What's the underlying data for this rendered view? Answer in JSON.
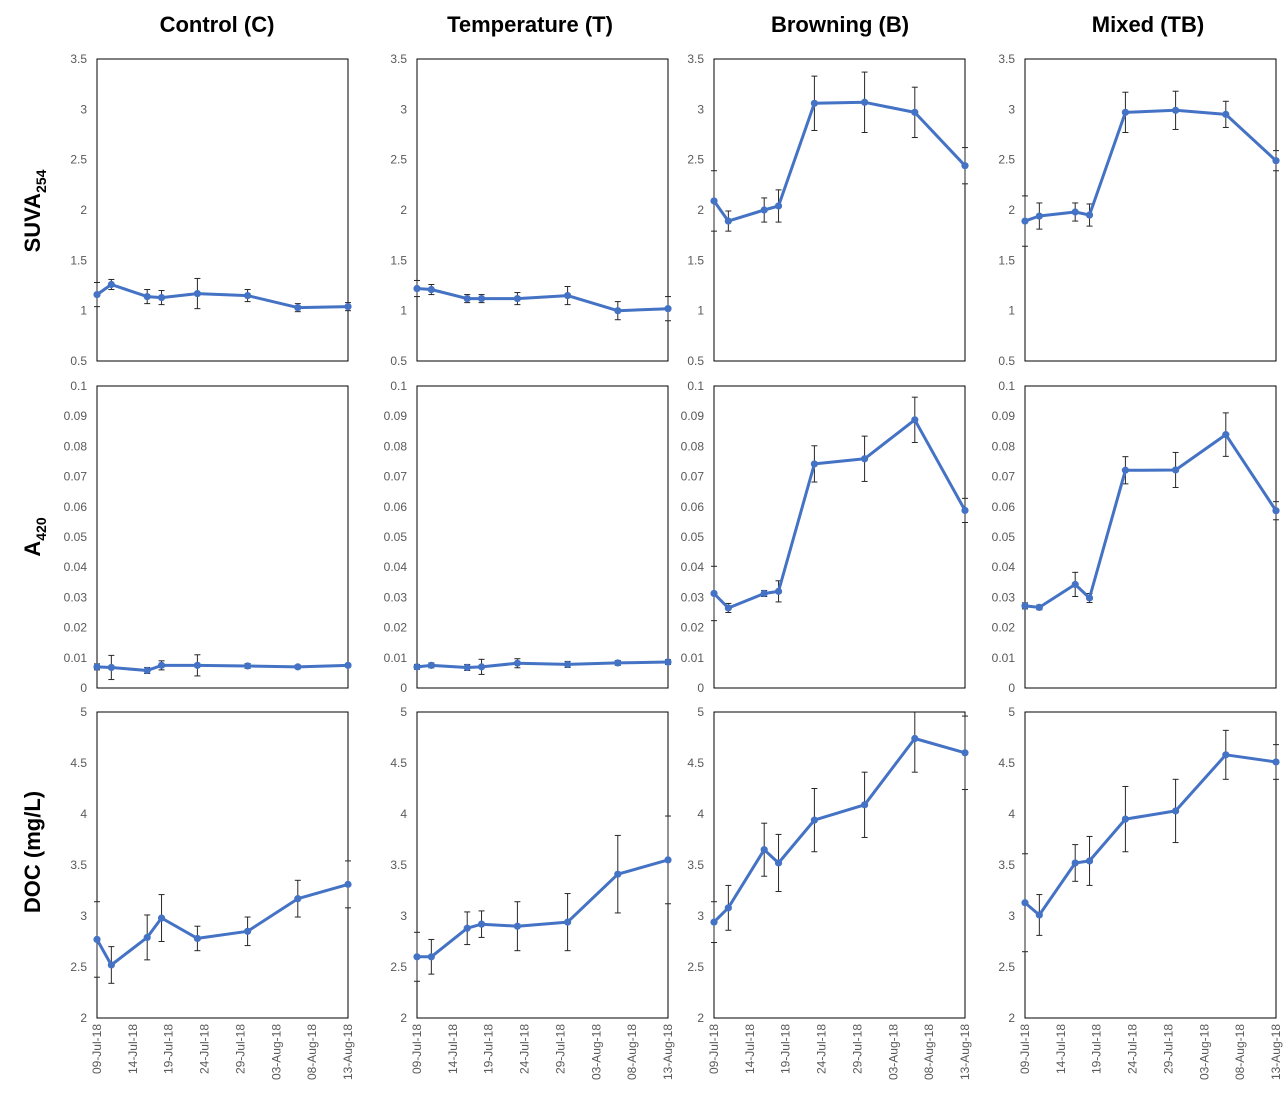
{
  "columns": [
    "Control (C)",
    "Temperature (T)",
    "Browning (B)",
    "Mixed (TB)"
  ],
  "rows": [
    {
      "label": "SUVA",
      "sub": "254"
    },
    {
      "label": "A",
      "sub": "420"
    },
    {
      "label": "DOC (mg/L)",
      "sub": ""
    }
  ],
  "line_color": "#4472C4",
  "chart_data": [
    {
      "type": "line",
      "panel": "Control (C) / SUVA254",
      "ylim": [
        0.5,
        3.5
      ],
      "yticks": [
        "0.5",
        "1",
        "1.5",
        "2",
        "2.5",
        "3",
        "3.5"
      ],
      "x": [
        "09-Jul-18",
        "11-Jul-18",
        "16-Jul-18",
        "18-Jul-18",
        "23-Jul-18",
        "30-Jul-18",
        "06-Aug-18",
        "13-Aug-18"
      ],
      "y": [
        1.16,
        1.26,
        1.14,
        1.13,
        1.17,
        1.15,
        1.03,
        1.04
      ],
      "err": [
        0.12,
        0.05,
        0.07,
        0.07,
        0.15,
        0.06,
        0.04,
        0.04
      ]
    },
    {
      "type": "line",
      "panel": "Temperature (T) / SUVA254",
      "ylim": [
        0.5,
        3.5
      ],
      "yticks": [
        "0.5",
        "1",
        "1.5",
        "2",
        "2.5",
        "3",
        "3.5"
      ],
      "x": [
        "09-Jul-18",
        "11-Jul-18",
        "16-Jul-18",
        "18-Jul-18",
        "23-Jul-18",
        "30-Jul-18",
        "06-Aug-18",
        "13-Aug-18"
      ],
      "y": [
        1.22,
        1.21,
        1.12,
        1.12,
        1.12,
        1.15,
        1.0,
        1.02
      ],
      "err": [
        0.08,
        0.05,
        0.04,
        0.04,
        0.06,
        0.09,
        0.09,
        0.12
      ]
    },
    {
      "type": "line",
      "panel": "Browning (B) / SUVA254",
      "ylim": [
        0.5,
        3.5
      ],
      "yticks": [
        "0.5",
        "1",
        "1.5",
        "2",
        "2.5",
        "3",
        "3.5"
      ],
      "x": [
        "09-Jul-18",
        "11-Jul-18",
        "16-Jul-18",
        "18-Jul-18",
        "23-Jul-18",
        "30-Jul-18",
        "06-Aug-18",
        "13-Aug-18"
      ],
      "y": [
        2.09,
        1.89,
        2.0,
        2.04,
        3.06,
        3.07,
        2.97,
        2.44
      ],
      "err": [
        0.3,
        0.1,
        0.12,
        0.16,
        0.27,
        0.3,
        0.25,
        0.18
      ]
    },
    {
      "type": "line",
      "panel": "Mixed (TB) / SUVA254",
      "ylim": [
        0.5,
        3.5
      ],
      "yticks": [
        "0.5",
        "1",
        "1.5",
        "2",
        "2.5",
        "3",
        "3.5"
      ],
      "x": [
        "09-Jul-18",
        "11-Jul-18",
        "16-Jul-18",
        "18-Jul-18",
        "23-Jul-18",
        "30-Jul-18",
        "06-Aug-18",
        "13-Aug-18"
      ],
      "y": [
        1.89,
        1.94,
        1.98,
        1.95,
        2.97,
        2.99,
        2.95,
        2.49
      ],
      "err": [
        0.25,
        0.13,
        0.09,
        0.11,
        0.2,
        0.19,
        0.13,
        0.1
      ]
    },
    {
      "type": "line",
      "panel": "Control (C) / A420",
      "ylim": [
        0,
        0.1
      ],
      "yticks": [
        "0",
        "0.01",
        "0.02",
        "0.03",
        "0.04",
        "0.05",
        "0.06",
        "0.07",
        "0.08",
        "0.09",
        "0.1"
      ],
      "x": [
        "09-Jul-18",
        "11-Jul-18",
        "16-Jul-18",
        "18-Jul-18",
        "23-Jul-18",
        "30-Jul-18",
        "06-Aug-18",
        "13-Aug-18"
      ],
      "y": [
        0.007,
        0.0068,
        0.0058,
        0.0075,
        0.0075,
        0.0073,
        0.007,
        0.0075
      ],
      "err": [
        0.001,
        0.004,
        0.001,
        0.0015,
        0.0035,
        0.0008,
        0.0006,
        0.0005
      ]
    },
    {
      "type": "line",
      "panel": "Temperature (T) / A420",
      "ylim": [
        0,
        0.1
      ],
      "yticks": [
        "0",
        "0.01",
        "0.02",
        "0.03",
        "0.04",
        "0.05",
        "0.06",
        "0.07",
        "0.08",
        "0.09",
        "0.1"
      ],
      "x": [
        "09-Jul-18",
        "11-Jul-18",
        "16-Jul-18",
        "18-Jul-18",
        "23-Jul-18",
        "30-Jul-18",
        "06-Aug-18",
        "13-Aug-18"
      ],
      "y": [
        0.007,
        0.0075,
        0.0068,
        0.007,
        0.0082,
        0.0078,
        0.0083,
        0.0086
      ],
      "err": [
        0.0008,
        0.0008,
        0.001,
        0.0025,
        0.0015,
        0.001,
        0.0008,
        0.0008
      ]
    },
    {
      "type": "line",
      "panel": "Browning (B) / A420",
      "ylim": [
        0,
        0.1
      ],
      "yticks": [
        "0",
        "0.01",
        "0.02",
        "0.03",
        "0.04",
        "0.05",
        "0.06",
        "0.07",
        "0.08",
        "0.09",
        "0.1"
      ],
      "x": [
        "09-Jul-18",
        "11-Jul-18",
        "16-Jul-18",
        "18-Jul-18",
        "23-Jul-18",
        "30-Jul-18",
        "06-Aug-18",
        "13-Aug-18"
      ],
      "y": [
        0.0313,
        0.0265,
        0.0313,
        0.032,
        0.0742,
        0.0759,
        0.0888,
        0.0588
      ],
      "err": [
        0.009,
        0.0015,
        0.001,
        0.0035,
        0.006,
        0.0075,
        0.0075,
        0.004
      ]
    },
    {
      "type": "line",
      "panel": "Mixed (TB) / A420",
      "ylim": [
        0,
        0.1
      ],
      "yticks": [
        "0",
        "0.01",
        "0.02",
        "0.03",
        "0.04",
        "0.05",
        "0.06",
        "0.07",
        "0.08",
        "0.09",
        "0.1"
      ],
      "x": [
        "09-Jul-18",
        "11-Jul-18",
        "16-Jul-18",
        "18-Jul-18",
        "23-Jul-18",
        "30-Jul-18",
        "06-Aug-18",
        "13-Aug-18"
      ],
      "y": [
        0.0272,
        0.0267,
        0.0343,
        0.0298,
        0.0721,
        0.0722,
        0.0839,
        0.0587
      ],
      "err": [
        0.001,
        0.0008,
        0.004,
        0.0015,
        0.0045,
        0.0058,
        0.0072,
        0.003
      ]
    },
    {
      "type": "line",
      "panel": "Control (C) / DOC (mg/L)",
      "ylim": [
        2,
        5
      ],
      "yticks": [
        "2",
        "2.5",
        "3",
        "3.5",
        "4",
        "4.5",
        "5"
      ],
      "xticks": [
        "09-Jul-18",
        "14-Jul-18",
        "19-Jul-18",
        "24-Jul-18",
        "29-Jul-18",
        "03-Aug-18",
        "08-Aug-18",
        "13-Aug-18"
      ],
      "x": [
        "09-Jul-18",
        "11-Jul-18",
        "16-Jul-18",
        "18-Jul-18",
        "23-Jul-18",
        "30-Jul-18",
        "06-Aug-18",
        "13-Aug-18"
      ],
      "y": [
        2.77,
        2.52,
        2.79,
        2.98,
        2.78,
        2.85,
        3.17,
        3.31
      ],
      "err": [
        0.37,
        0.18,
        0.22,
        0.23,
        0.12,
        0.14,
        0.18,
        0.23
      ]
    },
    {
      "type": "line",
      "panel": "Temperature (T) / DOC (mg/L)",
      "ylim": [
        2,
        5
      ],
      "yticks": [
        "2",
        "2.5",
        "3",
        "3.5",
        "4",
        "4.5",
        "5"
      ],
      "xticks": [
        "09-Jul-18",
        "14-Jul-18",
        "19-Jul-18",
        "24-Jul-18",
        "29-Jul-18",
        "03-Aug-18",
        "08-Aug-18",
        "13-Aug-18"
      ],
      "x": [
        "09-Jul-18",
        "11-Jul-18",
        "16-Jul-18",
        "18-Jul-18",
        "23-Jul-18",
        "30-Jul-18",
        "06-Aug-18",
        "13-Aug-18"
      ],
      "y": [
        2.6,
        2.6,
        2.88,
        2.92,
        2.9,
        2.94,
        3.41,
        3.55
      ],
      "err": [
        0.24,
        0.17,
        0.16,
        0.13,
        0.24,
        0.28,
        0.38,
        0.43
      ]
    },
    {
      "type": "line",
      "panel": "Browning (B) / DOC (mg/L)",
      "ylim": [
        2,
        5
      ],
      "yticks": [
        "2",
        "2.5",
        "3",
        "3.5",
        "4",
        "4.5",
        "5"
      ],
      "xticks": [
        "09-Jul-18",
        "14-Jul-18",
        "19-Jul-18",
        "24-Jul-18",
        "29-Jul-18",
        "03-Aug-18",
        "08-Aug-18",
        "13-Aug-18"
      ],
      "x": [
        "09-Jul-18",
        "11-Jul-18",
        "16-Jul-18",
        "18-Jul-18",
        "23-Jul-18",
        "30-Jul-18",
        "06-Aug-18",
        "13-Aug-18"
      ],
      "y": [
        2.94,
        3.08,
        3.65,
        3.52,
        3.94,
        4.09,
        4.74,
        4.6
      ],
      "err": [
        0.2,
        0.22,
        0.26,
        0.28,
        0.31,
        0.32,
        0.33,
        0.36
      ]
    },
    {
      "type": "line",
      "panel": "Mixed (TB) / DOC (mg/L)",
      "ylim": [
        2,
        5
      ],
      "yticks": [
        "2",
        "2.5",
        "3",
        "3.5",
        "4",
        "4.5",
        "5"
      ],
      "xticks": [
        "09-Jul-18",
        "14-Jul-18",
        "19-Jul-18",
        "24-Jul-18",
        "29-Jul-18",
        "03-Aug-18",
        "08-Aug-18",
        "13-Aug-18"
      ],
      "x": [
        "09-Jul-18",
        "11-Jul-18",
        "16-Jul-18",
        "18-Jul-18",
        "23-Jul-18",
        "30-Jul-18",
        "06-Aug-18",
        "13-Aug-18"
      ],
      "y": [
        3.13,
        3.01,
        3.52,
        3.54,
        3.95,
        4.03,
        4.58,
        4.51
      ],
      "err": [
        0.48,
        0.2,
        0.18,
        0.24,
        0.32,
        0.31,
        0.24,
        0.17
      ]
    }
  ]
}
